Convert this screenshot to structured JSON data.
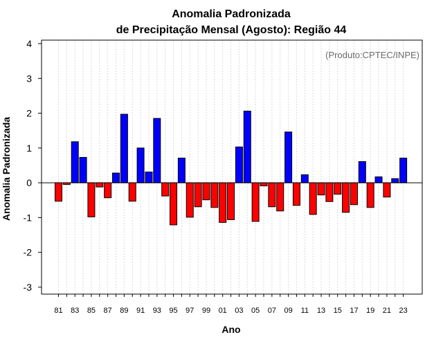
{
  "chart_data": {
    "type": "bar",
    "title": [
      "Anomalia Padronizada",
      "de Precipitação Mensal (Agosto): Região 44"
    ],
    "xlabel": "Ano",
    "ylabel": "Anomalia Padronizada",
    "annotation": "(Produto:CPTEC/INPE)",
    "ylim": [
      -3.2,
      4.1
    ],
    "yticks": [
      -3,
      -2,
      -1,
      0,
      1,
      2,
      3,
      4
    ],
    "categories": [
      "81",
      "82",
      "83",
      "84",
      "85",
      "86",
      "87",
      "88",
      "89",
      "90",
      "91",
      "92",
      "93",
      "94",
      "95",
      "96",
      "97",
      "98",
      "99",
      "00",
      "01",
      "02",
      "03",
      "04",
      "05",
      "06",
      "07",
      "08",
      "09",
      "10",
      "11",
      "12",
      "13",
      "14",
      "15",
      "16",
      "17",
      "18",
      "19",
      "20",
      "21",
      "22",
      "23"
    ],
    "xtick_labels_shown": [
      "81",
      "83",
      "85",
      "87",
      "89",
      "91",
      "93",
      "95",
      "97",
      "99",
      "01",
      "03",
      "05",
      "07",
      "09",
      "11",
      "13",
      "15",
      "17",
      "19",
      "21",
      "23"
    ],
    "values": [
      -0.53,
      -0.05,
      1.18,
      0.73,
      -0.98,
      -0.12,
      -0.43,
      0.28,
      1.97,
      -0.53,
      1.0,
      0.31,
      1.85,
      -0.38,
      -1.21,
      0.71,
      -0.99,
      -0.69,
      -0.49,
      -0.71,
      -1.14,
      -1.06,
      1.03,
      2.06,
      -1.11,
      -0.09,
      -0.69,
      -0.81,
      1.46,
      -0.65,
      0.23,
      -0.91,
      -0.35,
      -0.54,
      -0.33,
      -0.85,
      -0.63,
      0.61,
      -0.71,
      0.17,
      -0.41,
      0.12,
      0.71
    ],
    "colors": {
      "positive": "#0000ff",
      "negative": "#ff0000"
    },
    "grid": "vertical-dotted"
  }
}
